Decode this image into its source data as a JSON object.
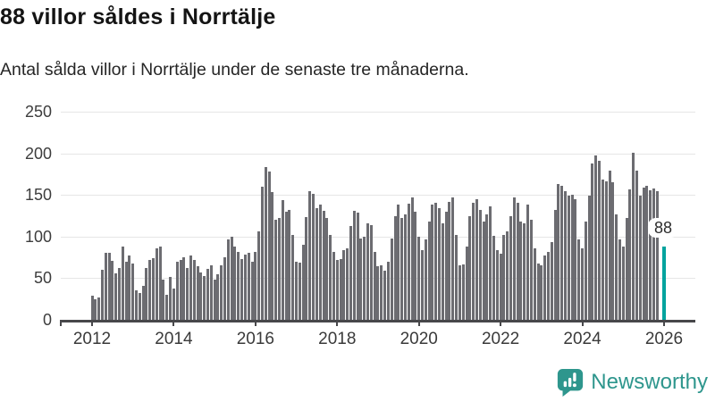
{
  "header": {
    "title": "88 villor såldes i Norrtälje",
    "subtitle": "Antal sålda villor i Norrtälje under de senaste tre månaderna."
  },
  "chart_data": {
    "type": "bar",
    "title": "88 villor såldes i Norrtälje",
    "subtitle": "Antal sålda villor i Norrtälje under de senaste tre månaderna.",
    "x_unit": "month",
    "x_start": "2012-01",
    "x_tick_labels": [
      "2012",
      "2014",
      "2016",
      "2018",
      "2020",
      "2022",
      "2024",
      "2026"
    ],
    "x_ticks_every_n_bars": 24,
    "y_ticks": [
      0,
      50,
      100,
      150,
      200,
      250
    ],
    "ylim": [
      0,
      250
    ],
    "grid": true,
    "legend": "none",
    "bar_color": "#6c6c71",
    "highlight_color": "#00a39e",
    "values": [
      29,
      25,
      27,
      60,
      80,
      81,
      71,
      56,
      62,
      88,
      70,
      77,
      68,
      35,
      32,
      41,
      62,
      72,
      74,
      86,
      88,
      48,
      30,
      52,
      38,
      70,
      72,
      75,
      62,
      77,
      72,
      64,
      57,
      53,
      61,
      66,
      48,
      55,
      66,
      75,
      97,
      100,
      88,
      82,
      73,
      78,
      80,
      70,
      82,
      106,
      160,
      183,
      178,
      153,
      120,
      122,
      144,
      130,
      132,
      102,
      70,
      69,
      90,
      123,
      154,
      151,
      134,
      138,
      131,
      122,
      102,
      82,
      72,
      73,
      84,
      86,
      113,
      131,
      129,
      98,
      100,
      116,
      114,
      82,
      64,
      66,
      59,
      70,
      98,
      124,
      138,
      122,
      127,
      140,
      147,
      130,
      100,
      84,
      97,
      118,
      138,
      141,
      134,
      116,
      130,
      142,
      147,
      102,
      66,
      67,
      88,
      124,
      141,
      145,
      132,
      118,
      127,
      136,
      101,
      84,
      79,
      102,
      106,
      124,
      147,
      141,
      118,
      116,
      138,
      120,
      86,
      68,
      66,
      77,
      82,
      93,
      132,
      163,
      161,
      154,
      149,
      150,
      145,
      97,
      86,
      118,
      149,
      188,
      197,
      191,
      168,
      166,
      179,
      165,
      127,
      97,
      88,
      122,
      157,
      201,
      179,
      149,
      159,
      161,
      156,
      158,
      155
    ],
    "highlight": {
      "label": "88",
      "value": 88,
      "gap_slots": 1
    }
  },
  "branding": {
    "logo_text": "Newsworthy",
    "logo_color": "#2e968d",
    "logo_icon": "bar-chart-speech-bubble-icon"
  }
}
